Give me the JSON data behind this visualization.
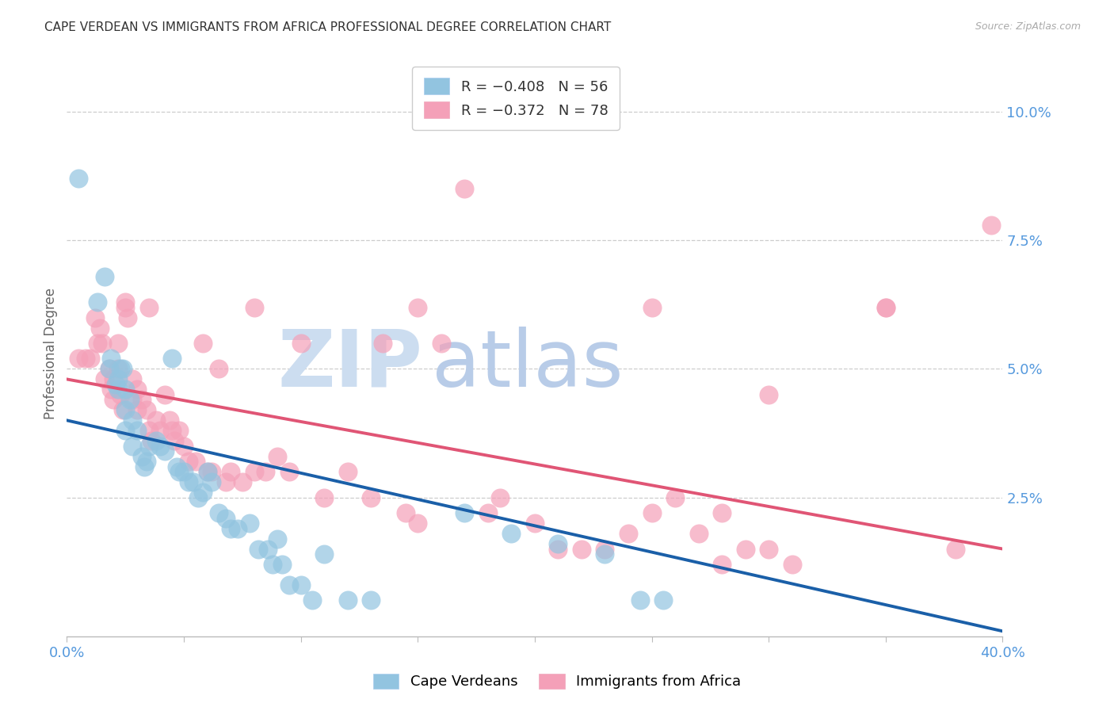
{
  "title": "CAPE VERDEAN VS IMMIGRANTS FROM AFRICA PROFESSIONAL DEGREE CORRELATION CHART",
  "source": "Source: ZipAtlas.com",
  "ylabel": "Professional Degree",
  "xlim": [
    0.0,
    0.4
  ],
  "ylim": [
    -0.002,
    0.108
  ],
  "blue_color": "#92c4e0",
  "pink_color": "#f4a0b8",
  "blue_line_color": "#1a5fa8",
  "pink_line_color": "#e05575",
  "title_color": "#333333",
  "axis_label_color": "#5599dd",
  "grid_color": "#c8c8c8",
  "watermark_zip_color": "#ccddf0",
  "watermark_atlas_color": "#b8cce8",
  "blue_scatter": [
    [
      0.005,
      0.087
    ],
    [
      0.013,
      0.063
    ],
    [
      0.016,
      0.068
    ],
    [
      0.018,
      0.05
    ],
    [
      0.019,
      0.052
    ],
    [
      0.021,
      0.047
    ],
    [
      0.022,
      0.048
    ],
    [
      0.022,
      0.046
    ],
    [
      0.023,
      0.05
    ],
    [
      0.024,
      0.05
    ],
    [
      0.025,
      0.046
    ],
    [
      0.025,
      0.042
    ],
    [
      0.025,
      0.038
    ],
    [
      0.027,
      0.044
    ],
    [
      0.028,
      0.04
    ],
    [
      0.028,
      0.035
    ],
    [
      0.03,
      0.038
    ],
    [
      0.032,
      0.033
    ],
    [
      0.033,
      0.031
    ],
    [
      0.034,
      0.032
    ],
    [
      0.035,
      0.035
    ],
    [
      0.038,
      0.036
    ],
    [
      0.04,
      0.035
    ],
    [
      0.042,
      0.034
    ],
    [
      0.045,
      0.052
    ],
    [
      0.047,
      0.031
    ],
    [
      0.048,
      0.03
    ],
    [
      0.05,
      0.03
    ],
    [
      0.052,
      0.028
    ],
    [
      0.054,
      0.028
    ],
    [
      0.056,
      0.025
    ],
    [
      0.058,
      0.026
    ],
    [
      0.06,
      0.03
    ],
    [
      0.062,
      0.028
    ],
    [
      0.065,
      0.022
    ],
    [
      0.068,
      0.021
    ],
    [
      0.07,
      0.019
    ],
    [
      0.073,
      0.019
    ],
    [
      0.078,
      0.02
    ],
    [
      0.082,
      0.015
    ],
    [
      0.086,
      0.015
    ],
    [
      0.088,
      0.012
    ],
    [
      0.09,
      0.017
    ],
    [
      0.092,
      0.012
    ],
    [
      0.095,
      0.008
    ],
    [
      0.1,
      0.008
    ],
    [
      0.105,
      0.005
    ],
    [
      0.11,
      0.014
    ],
    [
      0.12,
      0.005
    ],
    [
      0.13,
      0.005
    ],
    [
      0.17,
      0.022
    ],
    [
      0.19,
      0.018
    ],
    [
      0.21,
      0.016
    ],
    [
      0.23,
      0.014
    ],
    [
      0.245,
      0.005
    ],
    [
      0.255,
      0.005
    ]
  ],
  "pink_scatter": [
    [
      0.005,
      0.052
    ],
    [
      0.008,
      0.052
    ],
    [
      0.01,
      0.052
    ],
    [
      0.012,
      0.06
    ],
    [
      0.013,
      0.055
    ],
    [
      0.014,
      0.058
    ],
    [
      0.015,
      0.055
    ],
    [
      0.016,
      0.048
    ],
    [
      0.018,
      0.05
    ],
    [
      0.019,
      0.046
    ],
    [
      0.02,
      0.048
    ],
    [
      0.02,
      0.044
    ],
    [
      0.022,
      0.055
    ],
    [
      0.022,
      0.05
    ],
    [
      0.023,
      0.045
    ],
    [
      0.024,
      0.042
    ],
    [
      0.025,
      0.063
    ],
    [
      0.026,
      0.06
    ],
    [
      0.028,
      0.048
    ],
    [
      0.028,
      0.044
    ],
    [
      0.03,
      0.046
    ],
    [
      0.03,
      0.042
    ],
    [
      0.032,
      0.044
    ],
    [
      0.034,
      0.042
    ],
    [
      0.035,
      0.038
    ],
    [
      0.036,
      0.036
    ],
    [
      0.038,
      0.04
    ],
    [
      0.04,
      0.038
    ],
    [
      0.042,
      0.045
    ],
    [
      0.044,
      0.04
    ],
    [
      0.045,
      0.038
    ],
    [
      0.046,
      0.036
    ],
    [
      0.048,
      0.038
    ],
    [
      0.05,
      0.035
    ],
    [
      0.052,
      0.032
    ],
    [
      0.055,
      0.032
    ],
    [
      0.058,
      0.055
    ],
    [
      0.06,
      0.03
    ],
    [
      0.062,
      0.03
    ],
    [
      0.065,
      0.05
    ],
    [
      0.068,
      0.028
    ],
    [
      0.07,
      0.03
    ],
    [
      0.075,
      0.028
    ],
    [
      0.08,
      0.03
    ],
    [
      0.085,
      0.03
    ],
    [
      0.09,
      0.033
    ],
    [
      0.095,
      0.03
    ],
    [
      0.1,
      0.055
    ],
    [
      0.11,
      0.025
    ],
    [
      0.12,
      0.03
    ],
    [
      0.13,
      0.025
    ],
    [
      0.135,
      0.055
    ],
    [
      0.145,
      0.022
    ],
    [
      0.15,
      0.02
    ],
    [
      0.16,
      0.055
    ],
    [
      0.17,
      0.085
    ],
    [
      0.18,
      0.022
    ],
    [
      0.185,
      0.025
    ],
    [
      0.2,
      0.02
    ],
    [
      0.21,
      0.015
    ],
    [
      0.22,
      0.015
    ],
    [
      0.23,
      0.015
    ],
    [
      0.24,
      0.018
    ],
    [
      0.25,
      0.022
    ],
    [
      0.26,
      0.025
    ],
    [
      0.27,
      0.018
    ],
    [
      0.28,
      0.012
    ],
    [
      0.29,
      0.015
    ],
    [
      0.3,
      0.015
    ],
    [
      0.31,
      0.012
    ],
    [
      0.35,
      0.062
    ],
    [
      0.38,
      0.015
    ],
    [
      0.395,
      0.078
    ],
    [
      0.25,
      0.062
    ],
    [
      0.35,
      0.062
    ],
    [
      0.08,
      0.062
    ],
    [
      0.035,
      0.062
    ],
    [
      0.025,
      0.062
    ],
    [
      0.15,
      0.062
    ],
    [
      0.3,
      0.045
    ],
    [
      0.28,
      0.022
    ]
  ],
  "blue_line_x": [
    0.0,
    0.4
  ],
  "blue_line_y": [
    0.04,
    -0.001
  ],
  "pink_line_x": [
    0.0,
    0.4
  ],
  "pink_line_y": [
    0.048,
    0.015
  ]
}
